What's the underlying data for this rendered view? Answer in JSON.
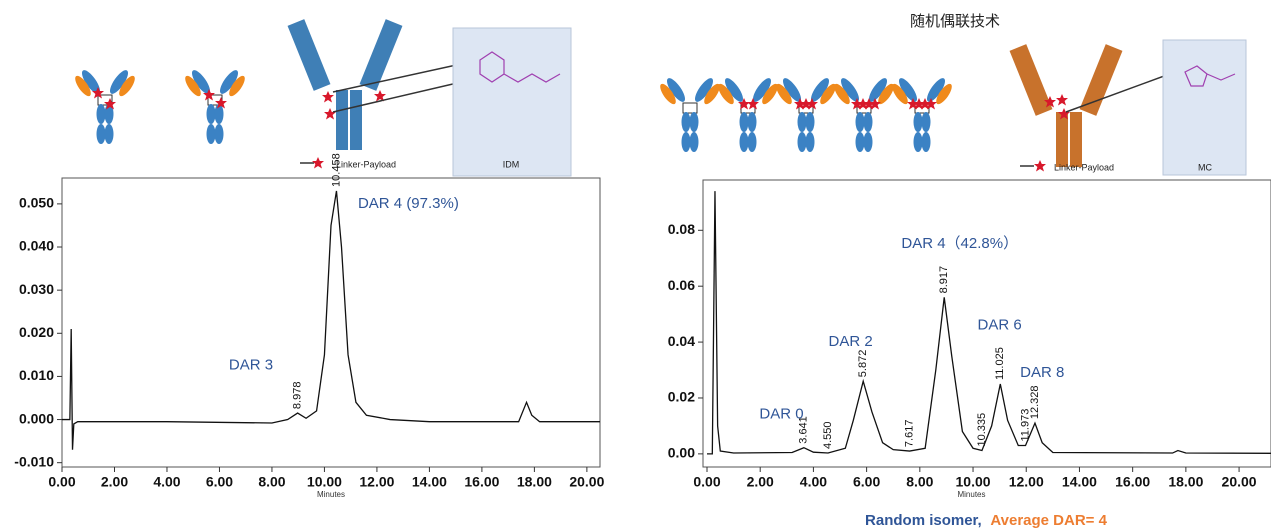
{
  "diagram": {
    "left": {
      "legend": "Linker-Payload",
      "box": "IDM"
    },
    "right": {
      "title": "随机偶联技术",
      "legend": "Linker-Payload",
      "box": "MC"
    }
  },
  "chart_data": [
    {
      "type": "line",
      "xlabel": "Minutes",
      "color": "#111111",
      "x": [
        0,
        0.3,
        0.35,
        0.4,
        0.45,
        0.6,
        4,
        8,
        8.6,
        8.978,
        9.3,
        9.7,
        10.0,
        10.25,
        10.458,
        10.65,
        10.9,
        11.2,
        11.6,
        12.5,
        14,
        17.4,
        17.7,
        17.9,
        18.2,
        20.5
      ],
      "values": [
        0,
        0,
        0.021,
        -0.007,
        -0.001,
        -0.0005,
        -0.0005,
        -0.0008,
        0,
        0.0015,
        0.0003,
        0.002,
        0.015,
        0.045,
        0.053,
        0.04,
        0.015,
        0.004,
        0.001,
        0,
        -0.0005,
        -0.0005,
        0.004,
        0.001,
        -0.0005,
        -0.0005
      ],
      "xlim": [
        0,
        20.5
      ],
      "ylim": [
        -0.011,
        0.056
      ],
      "xticks": [
        {
          "value": 0,
          "label": "0.00"
        },
        {
          "value": 2,
          "label": "2.00"
        },
        {
          "value": 4,
          "label": "4.00"
        },
        {
          "value": 6,
          "label": "6.00"
        },
        {
          "value": 8,
          "label": "8.00"
        },
        {
          "value": 10,
          "label": "10.00"
        },
        {
          "value": 12,
          "label": "12.00"
        },
        {
          "value": 14,
          "label": "14.00"
        },
        {
          "value": 16,
          "label": "16.00"
        },
        {
          "value": 18,
          "label": "18.00"
        },
        {
          "value": 20,
          "label": "20.00"
        }
      ],
      "yticks": [
        {
          "value": -0.01,
          "label": "-0.010"
        },
        {
          "value": 0,
          "label": "0.000"
        },
        {
          "value": 0.01,
          "label": "0.010"
        },
        {
          "value": 0.02,
          "label": "0.020"
        },
        {
          "value": 0.03,
          "label": "0.030"
        },
        {
          "value": 0.04,
          "label": "0.040"
        },
        {
          "value": 0.05,
          "label": "0.050"
        }
      ],
      "peaks": [
        8.978,
        10.458
      ],
      "annotations": [
        {
          "text": "DAR 3",
          "x": 7.2,
          "y": 0.0125
        },
        {
          "text": "DAR 4 (97.3%)",
          "x": 13.2,
          "y": 0.05
        }
      ]
    },
    {
      "type": "line",
      "xlabel": "Minutes",
      "color": "#111111",
      "x": [
        0,
        0.2,
        0.3,
        0.4,
        0.5,
        1,
        3.2,
        3.641,
        4.0,
        4.55,
        5.2,
        5.5,
        5.872,
        6.2,
        6.6,
        7.0,
        7.617,
        8.2,
        8.6,
        8.917,
        9.2,
        9.6,
        10.0,
        10.335,
        10.7,
        11.025,
        11.3,
        11.7,
        11.973,
        12.328,
        12.6,
        13,
        17.5,
        17.7,
        18,
        21.2
      ],
      "values": [
        0,
        0,
        0.094,
        0.01,
        0.001,
        0.0003,
        0.0005,
        0.0022,
        0.0006,
        0.0003,
        0.002,
        0.012,
        0.026,
        0.015,
        0.004,
        0.0015,
        0.001,
        0.002,
        0.03,
        0.056,
        0.035,
        0.008,
        0.002,
        0.0012,
        0.01,
        0.025,
        0.012,
        0.003,
        0.003,
        0.011,
        0.004,
        0.0005,
        0.0003,
        0.0012,
        0.0003,
        0.0002
      ],
      "xlim": [
        -0.15,
        21.2
      ],
      "ylim": [
        -0.0047,
        0.098
      ],
      "xticks": [
        {
          "value": 0,
          "label": "0.00"
        },
        {
          "value": 2,
          "label": "2.00"
        },
        {
          "value": 4,
          "label": "4.00"
        },
        {
          "value": 6,
          "label": "6.00"
        },
        {
          "value": 8,
          "label": "8.00"
        },
        {
          "value": 10,
          "label": "10.00"
        },
        {
          "value": 12,
          "label": "12.00"
        },
        {
          "value": 14,
          "label": "14.00"
        },
        {
          "value": 16,
          "label": "16.00"
        },
        {
          "value": 18,
          "label": "18.00"
        },
        {
          "value": 20,
          "label": "20.00"
        }
      ],
      "yticks": [
        {
          "value": 0,
          "label": "0.00"
        },
        {
          "value": 0.02,
          "label": "0.02"
        },
        {
          "value": 0.04,
          "label": "0.04"
        },
        {
          "value": 0.06,
          "label": "0.06"
        },
        {
          "value": 0.08,
          "label": "0.08"
        }
      ],
      "peaks": [
        3.641,
        {
          "value": 4.55,
          "label": "4.550"
        },
        5.872,
        7.617,
        8.917,
        10.335,
        11.025,
        11.973,
        12.328
      ],
      "annotations": [
        {
          "text": "DAR 0",
          "x": 2.8,
          "y": 0.014
        },
        {
          "text": "DAR 2",
          "x": 5.4,
          "y": 0.04
        },
        {
          "text": "DAR 4（42.8%）",
          "x": 9.5,
          "y": 0.075
        },
        {
          "text": "DAR 6",
          "x": 11.0,
          "y": 0.046
        },
        {
          "text": "DAR 8",
          "x": 12.6,
          "y": 0.029
        }
      ],
      "caption": [
        "Random isomer,",
        "Average DAR= 4"
      ]
    }
  ]
}
